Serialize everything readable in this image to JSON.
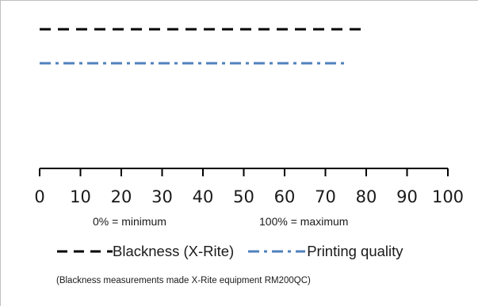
{
  "chart_data": {
    "type": "bar",
    "orientation": "horizontal",
    "xlim": [
      0,
      100
    ],
    "tick_labels": [
      "0",
      "10",
      "20",
      "30",
      "40",
      "50",
      "60",
      "70",
      "80",
      "90",
      "100"
    ],
    "series": [
      {
        "name": "Blackness (X-Rite)",
        "value": 80,
        "color": "#000000",
        "dash": "dashed"
      },
      {
        "name": "Printing quality",
        "value": 75,
        "color": "#4f81bd",
        "dash": "dash-dot"
      }
    ],
    "annotations": {
      "min_note": "0% = minimum",
      "max_note": "100% = maximum"
    },
    "legend_position": "bottom",
    "grid": false
  },
  "legend": {
    "blackness_label": "Blackness (X-Rite)",
    "quality_label": "Printing quality"
  },
  "footnote": "(Blackness measurements made X-Rite equipment RM200QC)"
}
